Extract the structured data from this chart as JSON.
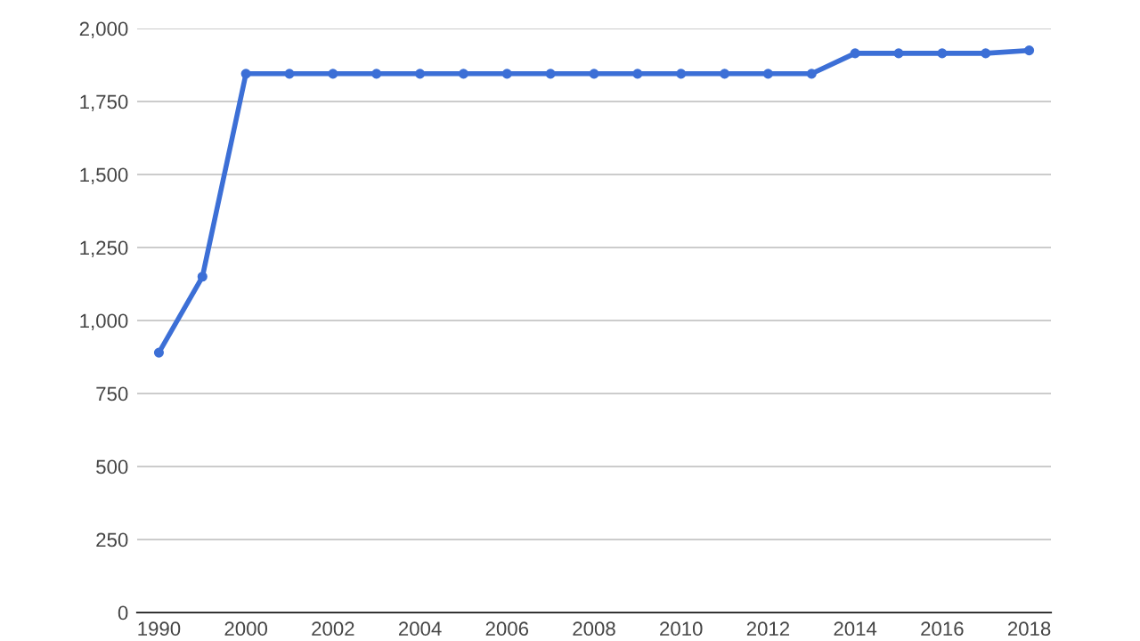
{
  "chart_data": {
    "type": "line",
    "categories": [
      "1990",
      null,
      "2000",
      null,
      "2002",
      null,
      "2004",
      null,
      "2006",
      null,
      "2008",
      null,
      "2010",
      null,
      "2012",
      null,
      "2014",
      null,
      "2016",
      null,
      "2018"
    ],
    "series": [
      {
        "color": "#3c6fd6",
        "values": [
          890,
          1150,
          1845,
          1845,
          1845,
          1845,
          1845,
          1845,
          1845,
          1845,
          1845,
          1845,
          1845,
          1845,
          1845,
          1845,
          1915,
          1915,
          1915,
          1915,
          1925
        ]
      }
    ],
    "ylim": [
      0,
      2000
    ],
    "yticks": [
      {
        "value": 0,
        "label": "0"
      },
      {
        "value": 250,
        "label": "250"
      },
      {
        "value": 500,
        "label": "500"
      },
      {
        "value": 750,
        "label": "750"
      },
      {
        "value": 1000,
        "label": "1,000"
      },
      {
        "value": 1250,
        "label": "1,250"
      },
      {
        "value": 1500,
        "label": "1,500"
      },
      {
        "value": 1750,
        "label": "1,750"
      },
      {
        "value": 2000,
        "label": "2,000"
      }
    ],
    "grid": "y",
    "marker": "circle",
    "line_style": "solid",
    "legend": false
  }
}
